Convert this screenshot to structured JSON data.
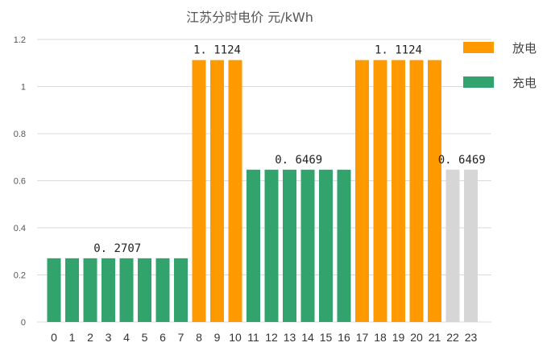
{
  "chart_data": {
    "type": "bar",
    "title": "江苏分时电价 元/kWh",
    "xlabel": "",
    "ylabel": "",
    "ylim": [
      0,
      1.2
    ],
    "y_ticks": [
      "0",
      "0.2",
      "0.4",
      "0.6",
      "0.8",
      "1",
      "1.2"
    ],
    "grid": true,
    "legend_position": "top-right",
    "categories": [
      "0",
      "1",
      "2",
      "3",
      "4",
      "5",
      "6",
      "7",
      "8",
      "9",
      "10",
      "11",
      "12",
      "13",
      "14",
      "15",
      "16",
      "17",
      "18",
      "19",
      "20",
      "21",
      "22",
      "23"
    ],
    "values": [
      0.2707,
      0.2707,
      0.2707,
      0.2707,
      0.2707,
      0.2707,
      0.2707,
      0.2707,
      1.1124,
      1.1124,
      1.1124,
      0.6469,
      0.6469,
      0.6469,
      0.6469,
      0.6469,
      0.6469,
      1.1124,
      1.1124,
      1.1124,
      1.1124,
      1.1124,
      0.6469,
      0.6469
    ],
    "bar_groups": [
      "charge",
      "charge",
      "charge",
      "charge",
      "charge",
      "charge",
      "charge",
      "charge",
      "discharge",
      "discharge",
      "discharge",
      "charge",
      "charge",
      "charge",
      "charge",
      "charge",
      "charge",
      "discharge",
      "discharge",
      "discharge",
      "discharge",
      "discharge",
      "idle",
      "idle"
    ],
    "colors": {
      "discharge": "#FF9900",
      "charge": "#33A36E",
      "idle": "#D6D6D6",
      "grid": "#D9D9D9"
    },
    "legend": [
      {
        "key": "discharge",
        "label": "放电"
      },
      {
        "key": "charge",
        "label": "充电"
      }
    ],
    "data_labels": [
      {
        "text": "0. 2707",
        "from": 0,
        "to": 7,
        "value": 0.2707
      },
      {
        "text": "1. 1124",
        "from": 8,
        "to": 10,
        "value": 1.1124
      },
      {
        "text": "0. 6469",
        "from": 11,
        "to": 16,
        "value": 0.6469
      },
      {
        "text": "1. 1124",
        "from": 17,
        "to": 21,
        "value": 1.1124
      },
      {
        "text": "0. 6469",
        "from": 22,
        "to": 23,
        "value": 0.6469
      }
    ]
  }
}
